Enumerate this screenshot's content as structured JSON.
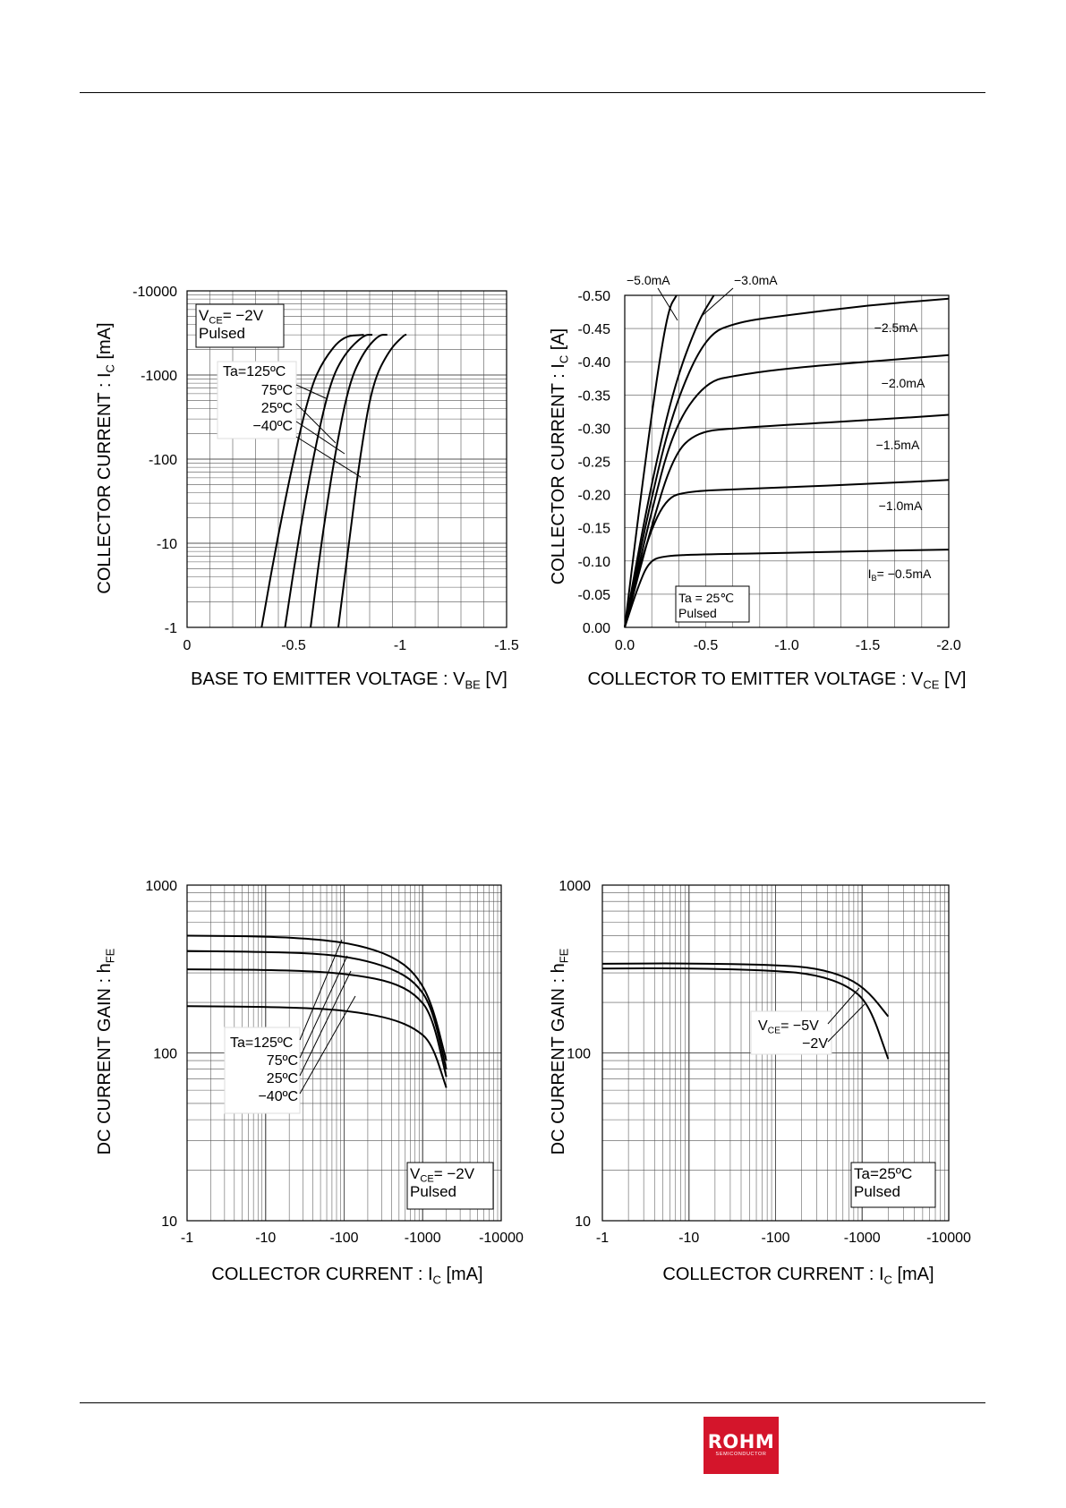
{
  "brand": {
    "name": "ROHM",
    "sub": "SEMICONDUCTOR",
    "color": "#d4152b"
  },
  "chart_data": [
    {
      "id": "vbe",
      "type": "line",
      "xlabel": "BASE TO EMITTER VOLTAGE : V_BE [V]",
      "ylabel": "COLLECTOR CURRENT : I_C [mA]",
      "xlim": [
        0,
        -1.5
      ],
      "ylim": [
        -1,
        -10000
      ],
      "yscale": "log",
      "xticks": [
        "0",
        "-0.5",
        "-1",
        "-1.5"
      ],
      "yticks": [
        "-1",
        "-10",
        "-100",
        "-1000",
        "-10000"
      ],
      "grid": true,
      "conditions": [
        "V_CE= −2V",
        "Pulsed"
      ],
      "legend_title": "Ta=125ºC",
      "legend_labels": [
        "75ºC",
        "25ºC",
        "−40ºC"
      ],
      "series": [
        {
          "name": "Ta=125ºC",
          "points": [
            [
              -0.35,
              -1
            ],
            [
              -0.42,
              -10
            ],
            [
              -0.5,
              -100
            ],
            [
              -0.58,
              -700
            ],
            [
              -0.64,
              -1500
            ],
            [
              -0.73,
              -2900
            ],
            [
              -0.83,
              -3000
            ]
          ]
        },
        {
          "name": "75ºC",
          "points": [
            [
              -0.46,
              -1
            ],
            [
              -0.52,
              -10
            ],
            [
              -0.59,
              -100
            ],
            [
              -0.67,
              -800
            ],
            [
              -0.74,
              -1800
            ],
            [
              -0.83,
              -3000
            ],
            [
              -0.87,
              -3000
            ]
          ]
        },
        {
          "name": "25ºC",
          "points": [
            [
              -0.58,
              -1
            ],
            [
              -0.63,
              -10
            ],
            [
              -0.69,
              -100
            ],
            [
              -0.76,
              -800
            ],
            [
              -0.83,
              -1900
            ],
            [
              -0.9,
              -3000
            ],
            [
              -0.94,
              -3000
            ]
          ]
        },
        {
          "name": "−40ºC",
          "points": [
            [
              -0.71,
              -1
            ],
            [
              -0.76,
              -10
            ],
            [
              -0.81,
              -100
            ],
            [
              -0.87,
              -800
            ],
            [
              -0.95,
              -2000
            ],
            [
              -1.02,
              -3000
            ],
            [
              -1.03,
              -3000
            ]
          ]
        }
      ]
    },
    {
      "id": "vce",
      "type": "line",
      "xlabel": "COLLECTOR TO EMITTER VOLTAGE : V_CE [V]",
      "ylabel": "COLLECTOR CURRENT : I_C [A]",
      "xlim": [
        0,
        -2.0
      ],
      "ylim": [
        0,
        -0.5
      ],
      "xticks": [
        "0.0",
        "-0.5",
        "-1.0",
        "-1.5",
        "-2.0"
      ],
      "yticks": [
        "0.00",
        "-0.05",
        "-0.10",
        "-0.15",
        "-0.20",
        "-0.25",
        "-0.30",
        "-0.35",
        "-0.40",
        "-0.45",
        "-0.50"
      ],
      "grid": true,
      "conditions": [
        "Ta = 25℃",
        "Pulsed"
      ],
      "series": [
        {
          "name": "−5.0mA",
          "points": [
            [
              0,
              0
            ],
            [
              -0.1,
              -0.2
            ],
            [
              -0.2,
              -0.38
            ],
            [
              -0.27,
              -0.48
            ],
            [
              -0.32,
              -0.5
            ]
          ]
        },
        {
          "name": "−3.0mA",
          "points": [
            [
              0,
              0
            ],
            [
              -0.15,
              -0.2
            ],
            [
              -0.3,
              -0.36
            ],
            [
              -0.45,
              -0.46
            ],
            [
              -0.55,
              -0.5
            ]
          ]
        },
        {
          "name": "−2.5mA",
          "points": [
            [
              0,
              0
            ],
            [
              -0.15,
              -0.18
            ],
            [
              -0.3,
              -0.33
            ],
            [
              -0.5,
              -0.44
            ],
            [
              -0.7,
              -0.46
            ],
            [
              -1.0,
              -0.47
            ],
            [
              -1.5,
              -0.485
            ],
            [
              -2.0,
              -0.495
            ]
          ]
        },
        {
          "name": "−2.0mA",
          "points": [
            [
              0,
              0
            ],
            [
              -0.15,
              -0.16
            ],
            [
              -0.3,
              -0.3
            ],
            [
              -0.5,
              -0.37
            ],
            [
              -0.7,
              -0.38
            ],
            [
              -1.0,
              -0.39
            ],
            [
              -1.5,
              -0.4
            ],
            [
              -2.0,
              -0.41
            ]
          ]
        },
        {
          "name": "−1.5mA",
          "points": [
            [
              0,
              0
            ],
            [
              -0.15,
              -0.14
            ],
            [
              -0.3,
              -0.26
            ],
            [
              -0.45,
              -0.295
            ],
            [
              -0.7,
              -0.3
            ],
            [
              -1.0,
              -0.305
            ],
            [
              -1.5,
              -0.312
            ],
            [
              -2.0,
              -0.32
            ]
          ]
        },
        {
          "name": "−1.0mA",
          "points": [
            [
              0,
              0
            ],
            [
              -0.12,
              -0.12
            ],
            [
              -0.25,
              -0.195
            ],
            [
              -0.4,
              -0.205
            ],
            [
              -0.7,
              -0.208
            ],
            [
              -1.0,
              -0.211
            ],
            [
              -1.5,
              -0.216
            ],
            [
              -2.0,
              -0.222
            ]
          ]
        },
        {
          "name": "I_B= −0.5mA",
          "points": [
            [
              0,
              0
            ],
            [
              -0.08,
              -0.06
            ],
            [
              -0.15,
              -0.1
            ],
            [
              -0.25,
              -0.108
            ],
            [
              -0.5,
              -0.11
            ],
            [
              -1.0,
              -0.112
            ],
            [
              -1.5,
              -0.115
            ],
            [
              -2.0,
              -0.117
            ]
          ]
        }
      ]
    },
    {
      "id": "hfe_temp",
      "type": "line",
      "xlabel": "COLLECTOR CURRENT : I_C [mA]",
      "ylabel": "DC CURRENT GAIN : h_FE",
      "xlim": [
        -1,
        -10000
      ],
      "ylim": [
        10,
        1000
      ],
      "xscale": "log",
      "yscale": "log",
      "xticks": [
        "-1",
        "-10",
        "-100",
        "-1000",
        "-10000"
      ],
      "yticks": [
        "10",
        "100",
        "1000"
      ],
      "grid": true,
      "conditions": [
        "V_CE= −2V",
        "Pulsed"
      ],
      "legend_title": "Ta=125ºC",
      "legend_labels": [
        "75ºC",
        "25ºC",
        "−40ºC"
      ],
      "series": [
        {
          "name": "Ta=125ºC",
          "points": [
            [
              -1,
              500
            ],
            [
              -10,
              495
            ],
            [
              -50,
              475
            ],
            [
              -150,
              440
            ],
            [
              -400,
              380
            ],
            [
              -800,
              300
            ],
            [
              -1300,
              200
            ],
            [
              -2000,
              90
            ]
          ]
        },
        {
          "name": "75ºC",
          "points": [
            [
              -1,
              405
            ],
            [
              -10,
              400
            ],
            [
              -50,
              390
            ],
            [
              -150,
              365
            ],
            [
              -400,
              320
            ],
            [
              -800,
              265
            ],
            [
              -1300,
              190
            ],
            [
              -2000,
              80
            ]
          ]
        },
        {
          "name": "25ºC",
          "points": [
            [
              -1,
              315
            ],
            [
              -10,
              313
            ],
            [
              -50,
              305
            ],
            [
              -150,
              290
            ],
            [
              -400,
              265
            ],
            [
              -800,
              225
            ],
            [
              -1300,
              170
            ],
            [
              -2000,
              72
            ]
          ]
        },
        {
          "name": "−40ºC",
          "points": [
            [
              -1,
              190
            ],
            [
              -10,
              188
            ],
            [
              -50,
              184
            ],
            [
              -150,
              175
            ],
            [
              -400,
              160
            ],
            [
              -800,
              140
            ],
            [
              -1300,
              115
            ],
            [
              -2000,
              62
            ]
          ]
        }
      ]
    },
    {
      "id": "hfe_vce",
      "type": "line",
      "xlabel": "COLLECTOR CURRENT : I_C [mA]",
      "ylabel": "DC CURRENT GAIN : h_FE",
      "xlim": [
        -1,
        -10000
      ],
      "ylim": [
        10,
        1000
      ],
      "xscale": "log",
      "yscale": "log",
      "xticks": [
        "-1",
        "-10",
        "-100",
        "-1000",
        "-10000"
      ],
      "yticks": [
        "10",
        "100",
        "1000"
      ],
      "grid": true,
      "conditions": [
        "Ta=25ºC",
        "Pulsed"
      ],
      "legend_labels": [
        "V_CE= −5V",
        "−2V"
      ],
      "series": [
        {
          "name": "V_CE= −5V",
          "points": [
            [
              -1,
              340
            ],
            [
              -10,
              342
            ],
            [
              -100,
              335
            ],
            [
              -300,
              320
            ],
            [
              -700,
              280
            ],
            [
              -1200,
              230
            ],
            [
              -2000,
              165
            ]
          ]
        },
        {
          "name": "−2V",
          "points": [
            [
              -1,
              318
            ],
            [
              -10,
              320
            ],
            [
              -100,
              310
            ],
            [
              -300,
              292
            ],
            [
              -700,
              250
            ],
            [
              -1200,
              195
            ],
            [
              -2000,
              92
            ]
          ]
        }
      ]
    }
  ]
}
